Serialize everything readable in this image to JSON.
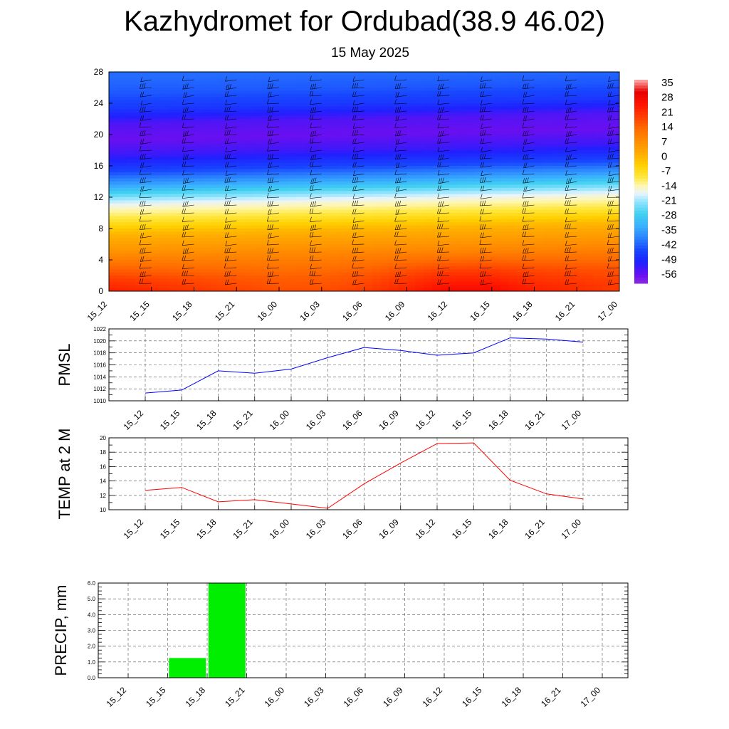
{
  "title": "Kazhydromet for Ordubad(38.9 46.02)",
  "subtitle": "15 May 2025",
  "time_labels": [
    "15_12",
    "15_15",
    "15_18",
    "15_21",
    "16_00",
    "16_03",
    "16_06",
    "16_09",
    "16_12",
    "16_15",
    "16_18",
    "16_21",
    "17_00"
  ],
  "colors": {
    "pmsl_line": "#0000ff",
    "temp_line": "#ff0000",
    "precip_bar": "#00ee00"
  },
  "chart_data": [
    {
      "type": "heatmap",
      "title": "",
      "xlabel": "",
      "ylabel": "",
      "x": [
        "15_12",
        "15_15",
        "15_18",
        "15_21",
        "16_00",
        "16_03",
        "16_06",
        "16_09",
        "16_12",
        "16_15",
        "16_18",
        "16_21",
        "17_00"
      ],
      "y_ticks": [
        0,
        4,
        8,
        12,
        16,
        20,
        24,
        28
      ],
      "ylim": [
        0,
        28
      ],
      "colorbar_labels": [
        "35",
        "28",
        "21",
        "14",
        "7",
        "0",
        "-7",
        "-14",
        "-21",
        "-28",
        "-35",
        "-42",
        "-49",
        "-56"
      ],
      "colorbar_range": [
        -60,
        40
      ],
      "profile": {
        "height": [
          0,
          2,
          4,
          6,
          8,
          10,
          11.5,
          12.5,
          14,
          16,
          18,
          20,
          22,
          24,
          26,
          28
        ],
        "value": [
          24,
          20,
          14,
          8,
          2,
          -8,
          -14,
          -20,
          -32,
          -44,
          -52,
          -56,
          -54,
          -46,
          -42,
          -40
        ]
      },
      "surface_value_by_time": [
        28,
        26,
        24,
        22,
        20,
        20,
        22,
        26,
        30,
        30,
        26,
        24,
        22
      ],
      "overlay": "wind barbs"
    },
    {
      "type": "line",
      "title": "",
      "xlabel": "",
      "ylabel": "PMSL",
      "x": [
        "15_12",
        "15_15",
        "15_18",
        "15_21",
        "16_00",
        "16_03",
        "16_06",
        "16_09",
        "16_12",
        "16_15",
        "16_18",
        "16_21",
        "17_00"
      ],
      "series": [
        {
          "values": [
            1011.3,
            1011.8,
            1015.0,
            1014.6,
            1015.3,
            1017.2,
            1018.9,
            1018.4,
            1017.6,
            1018.0,
            1020.5,
            1020.3,
            1019.8
          ]
        }
      ],
      "ylim": [
        1010,
        1022
      ],
      "y_ticks": [
        "1010",
        "1012",
        "1014",
        "1016",
        "1018",
        "1020",
        "1022"
      ],
      "grid": true
    },
    {
      "type": "line",
      "title": "",
      "xlabel": "",
      "ylabel": "TEMP at 2 M",
      "x": [
        "15_12",
        "15_15",
        "15_18",
        "15_21",
        "16_00",
        "16_03",
        "16_06",
        "16_09",
        "16_12",
        "16_15",
        "16_18",
        "16_21",
        "17_00"
      ],
      "series": [
        {
          "values": [
            12.7,
            13.1,
            11.1,
            11.4,
            10.8,
            10.2,
            13.6,
            16.5,
            19.2,
            19.3,
            14.1,
            12.2,
            11.5
          ]
        }
      ],
      "ylim": [
        10,
        20
      ],
      "y_ticks": [
        "10",
        "12",
        "14",
        "16",
        "18",
        "20"
      ],
      "grid": true
    },
    {
      "type": "bar",
      "title": "",
      "xlabel": "",
      "ylabel": "PRECIP, mm",
      "categories": [
        "15_12",
        "15_15",
        "15_18",
        "15_21",
        "16_00",
        "16_03",
        "16_06",
        "16_09",
        "16_12",
        "16_15",
        "16_18",
        "16_21",
        "17_00"
      ],
      "values": [
        0,
        1.25,
        6.0,
        0,
        0,
        0,
        0,
        0,
        0,
        0,
        0,
        0,
        0
      ],
      "ylim": [
        0,
        6
      ],
      "y_ticks": [
        "0.0",
        "1.0",
        "2.0",
        "3.0",
        "4.0",
        "5.0",
        "6.0"
      ],
      "grid": true
    }
  ]
}
